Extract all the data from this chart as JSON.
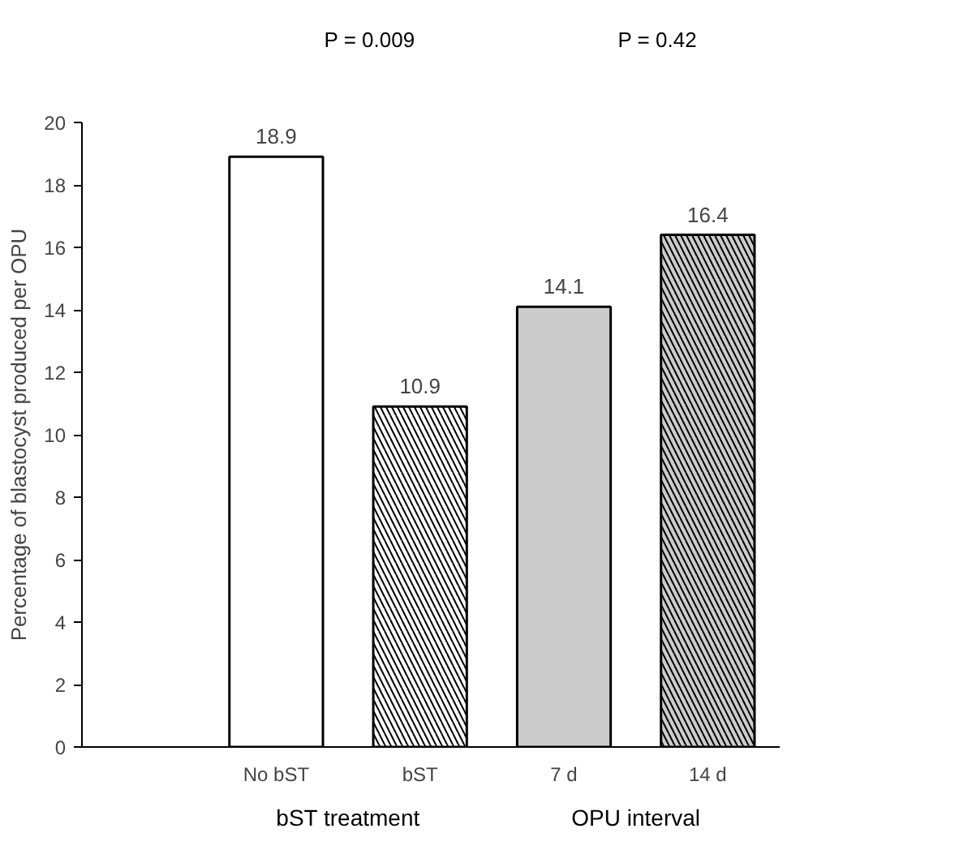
{
  "chart_data": {
    "type": "bar",
    "ylabel": "Percentage of blastocyst produced per OPU",
    "categories": [
      "No bST",
      "bST",
      "7 d",
      "14 d"
    ],
    "values": [
      18.9,
      10.9,
      14.1,
      16.4
    ],
    "colors": [
      "#ffffff",
      "#ffffff",
      "#cccccc",
      "#cccccc"
    ],
    "ylim": [
      0,
      20
    ],
    "yticks": [
      0,
      2,
      4,
      6,
      8,
      10,
      12,
      14,
      16,
      18,
      20
    ],
    "data_labels": true,
    "grid": false,
    "legend": false,
    "annotations": [
      "P = 0.009",
      "P = 0.42",
      "bST treatment",
      "OPU interval"
    ]
  }
}
